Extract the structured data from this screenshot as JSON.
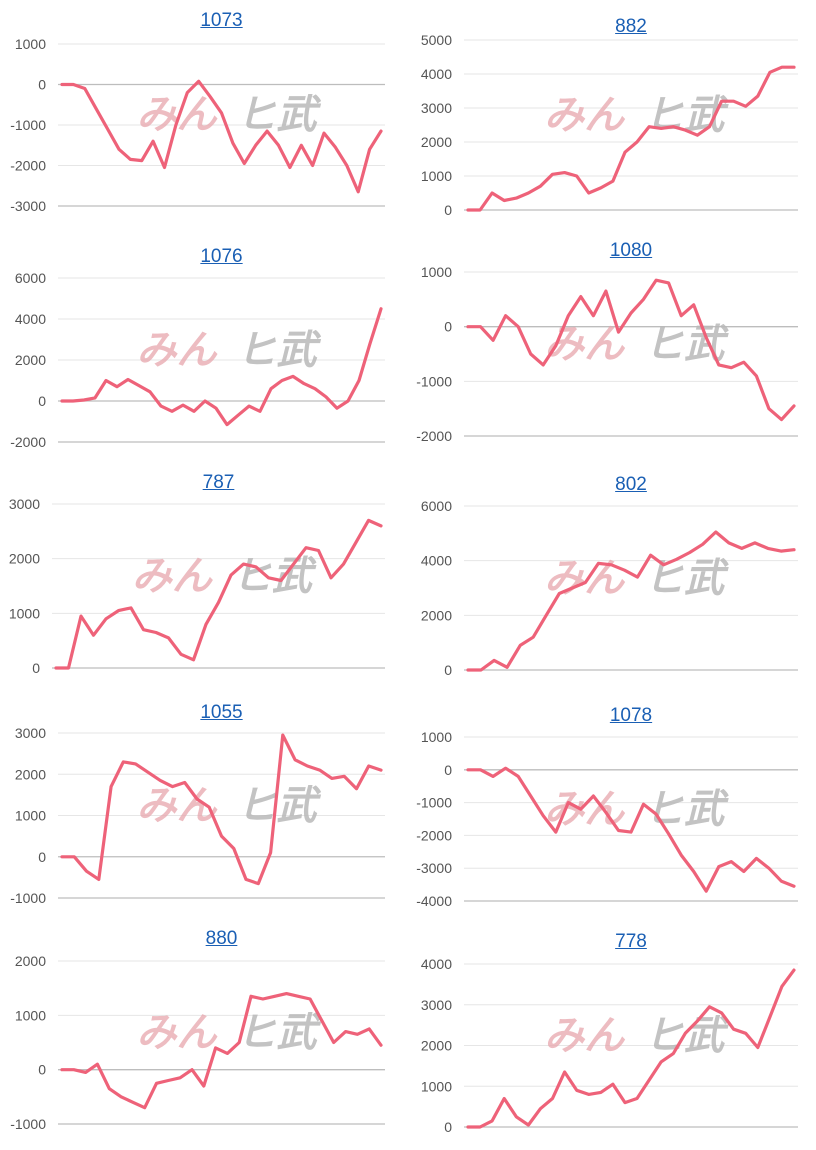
{
  "watermark": {
    "pink": "みん",
    "grey": "ヒ武"
  },
  "colors": {
    "line": "#ee6279",
    "grid": "#e6e6e6",
    "axis": "#bdbdbd",
    "title": "#1a5fb4"
  },
  "chart_data": [
    {
      "type": "line",
      "title": "1073",
      "ylim": [
        -3000,
        1000
      ],
      "yticks": [
        1000,
        0,
        -1000,
        -2000,
        -3000
      ],
      "values": [
        0,
        0,
        -100,
        -600,
        -1100,
        -1600,
        -1850,
        -1880,
        -1400,
        -2050,
        -1000,
        -200,
        80,
        -300,
        -700,
        -1450,
        -1950,
        -1500,
        -1150,
        -1500,
        -2050,
        -1500,
        -2000,
        -1200,
        -1550,
        -2000,
        -2650,
        -1600,
        -1150
      ]
    },
    {
      "type": "line",
      "title": "882",
      "ylim": [
        0,
        5000
      ],
      "yticks": [
        5000,
        4000,
        3000,
        2000,
        1000,
        0
      ],
      "values": [
        0,
        0,
        500,
        280,
        350,
        500,
        700,
        1050,
        1100,
        1000,
        500,
        650,
        850,
        1700,
        2000,
        2450,
        2400,
        2450,
        2350,
        2200,
        2450,
        3200,
        3200,
        3050,
        3350,
        4050,
        4200,
        4200
      ]
    },
    {
      "type": "line",
      "title": "1076",
      "ylim": [
        -2000,
        6000
      ],
      "yticks": [
        6000,
        4000,
        2000,
        0,
        -2000
      ],
      "values": [
        0,
        0,
        50,
        150,
        1000,
        700,
        1050,
        750,
        450,
        -250,
        -500,
        -200,
        -500,
        0,
        -350,
        -1150,
        -700,
        -250,
        -500,
        600,
        1000,
        1200,
        850,
        600,
        200,
        -350,
        0,
        1000,
        2800,
        4500
      ]
    },
    {
      "type": "line",
      "title": "1080",
      "ylim": [
        -2000,
        1000
      ],
      "yticks": [
        1000,
        0,
        -1000,
        -2000
      ],
      "values": [
        0,
        0,
        -250,
        200,
        0,
        -500,
        -700,
        -350,
        200,
        550,
        200,
        650,
        -100,
        250,
        500,
        850,
        800,
        200,
        400,
        -200,
        -700,
        -750,
        -650,
        -900,
        -1500,
        -1700,
        -1450
      ]
    },
    {
      "type": "line",
      "title": "787",
      "ylim": [
        0,
        3000
      ],
      "yticks": [
        3000,
        2000,
        1000,
        0
      ],
      "values": [
        0,
        0,
        950,
        600,
        900,
        1050,
        1100,
        700,
        650,
        550,
        250,
        150,
        800,
        1200,
        1700,
        1900,
        1850,
        1650,
        1600,
        1900,
        2200,
        2150,
        1650,
        1900,
        2300,
        2700,
        2600
      ]
    },
    {
      "type": "line",
      "title": "802",
      "ylim": [
        0,
        6000
      ],
      "yticks": [
        6000,
        4000,
        2000,
        0
      ],
      "values": [
        0,
        0,
        350,
        100,
        900,
        1200,
        2000,
        2800,
        3000,
        3200,
        3900,
        3850,
        3650,
        3400,
        4200,
        3850,
        4050,
        4300,
        4600,
        5050,
        4650,
        4450,
        4650,
        4450,
        4350,
        4400
      ]
    },
    {
      "type": "line",
      "title": "1055",
      "ylim": [
        -1000,
        3000
      ],
      "yticks": [
        3000,
        2000,
        1000,
        0,
        -1000
      ],
      "values": [
        0,
        0,
        -350,
        -550,
        1700,
        2300,
        2250,
        2050,
        1850,
        1700,
        1800,
        1400,
        1200,
        500,
        200,
        -550,
        -650,
        100,
        2950,
        2350,
        2200,
        2100,
        1900,
        1950,
        1650,
        2200,
        2100
      ]
    },
    {
      "type": "line",
      "title": "1078",
      "ylim": [
        -4000,
        1000
      ],
      "yticks": [
        1000,
        0,
        -1000,
        -2000,
        -3000,
        -4000
      ],
      "values": [
        0,
        0,
        -200,
        50,
        -200,
        -800,
        -1400,
        -1900,
        -1000,
        -1200,
        -800,
        -1300,
        -1850,
        -1900,
        -1050,
        -1350,
        -1950,
        -2600,
        -3100,
        -3700,
        -2950,
        -2800,
        -3100,
        -2700,
        -3000,
        -3400,
        -3550
      ]
    },
    {
      "type": "line",
      "title": "880",
      "ylim": [
        -1000,
        2000
      ],
      "yticks": [
        2000,
        1000,
        0,
        -1000
      ],
      "values": [
        0,
        0,
        -50,
        100,
        -350,
        -500,
        -600,
        -700,
        -250,
        -200,
        -150,
        0,
        -300,
        400,
        300,
        500,
        1350,
        1300,
        1350,
        1400,
        1350,
        1300,
        900,
        500,
        700,
        650,
        750,
        450
      ]
    },
    {
      "type": "line",
      "title": "778",
      "ylim": [
        0,
        4000
      ],
      "yticks": [
        4000,
        3000,
        2000,
        1000,
        0
      ],
      "values": [
        0,
        0,
        150,
        700,
        250,
        50,
        450,
        700,
        1350,
        900,
        800,
        850,
        1050,
        600,
        700,
        1150,
        1600,
        1800,
        2300,
        2600,
        2950,
        2800,
        2400,
        2300,
        1950,
        2700,
        3450,
        3850
      ]
    }
  ]
}
